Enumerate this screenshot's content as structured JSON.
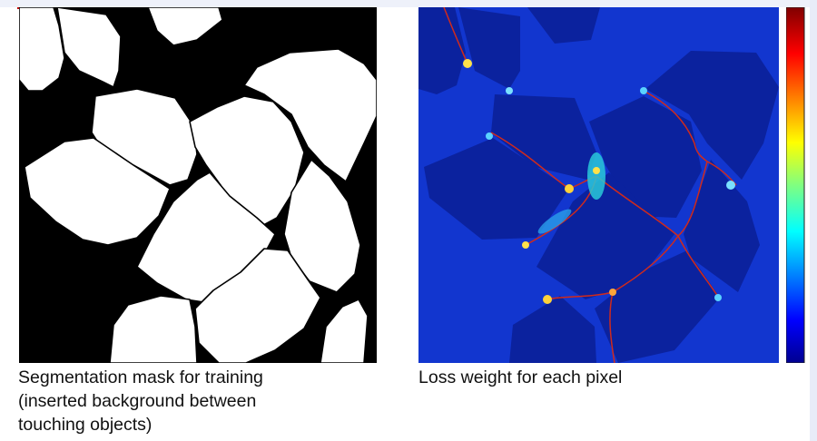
{
  "captions": {
    "mask": "Segmentation mask for training\n(inserted background between\ntouching objects)",
    "weight": "Loss weight for each pixel"
  },
  "colors": {
    "background": "#000000",
    "cells": "#ffffff",
    "weight_base": "#1034c8",
    "weight_cells": "#0a1f9a",
    "border_high": "#c8281e"
  },
  "colorbar": {
    "colormap": "jet"
  }
}
